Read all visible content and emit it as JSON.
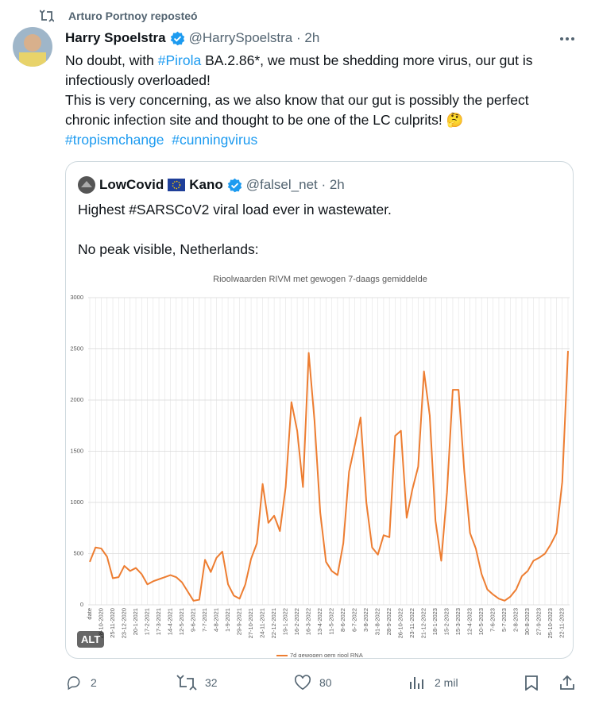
{
  "repost": {
    "text": "Arturo Portnoy reposteó"
  },
  "tweet": {
    "name": "Harry Spoelstra",
    "meta": "@HarrySpoelstra · 2h",
    "paragraphs": [
      [
        {
          "text": "No doubt, with "
        },
        {
          "text": "#Pirola",
          "hashtag": true
        },
        {
          "text": " BA.2.86*, we must be shedding more virus, our gut is infectiously overloaded!"
        }
      ],
      [
        {
          "text": "This is very concerning, as we also know that our gut is possibly the perfect chronic infection site and thought to be one of the LC culprits! 🤔"
        }
      ],
      [
        {
          "text": "#tropismchange",
          "hashtag": true
        },
        {
          "text": "  "
        },
        {
          "text": "#cunningvirus",
          "hashtag": true
        }
      ]
    ]
  },
  "quote": {
    "name": "LowCovid",
    "name2": "Kano",
    "meta": "@falsel_net · 2h",
    "lines": [
      "Highest #SARSCoV2 viral load ever in wastewater.",
      "No peak visible, Netherlands:"
    ],
    "alt": "ALT"
  },
  "chart_data": {
    "type": "line",
    "title": "Rioolwaarden RIVM met gewogen 7-daags gemiddelde",
    "categories": [
      "date",
      null,
      "28-10-2020",
      null,
      "25-11-2020",
      null,
      "23-12-2020",
      null,
      "20-1-2021",
      null,
      "17-2-2021",
      null,
      "17-3-2021",
      null,
      "14-4-2021",
      null,
      "12-5-2021",
      null,
      "9-6-2021",
      null,
      "7-7-2021",
      null,
      "4-8-2021",
      null,
      "1-9-2021",
      null,
      "29-9-2021",
      null,
      "27-10-2021",
      null,
      "24-11-2021",
      null,
      "22-12-2021",
      null,
      "19-1-2022",
      null,
      "16-2-2022",
      null,
      "16-3-2022",
      null,
      "13-4-2022",
      null,
      "11-5-2022",
      null,
      "8-6-2022",
      null,
      "6-7-2022",
      null,
      "3-8-2022",
      null,
      "31-8-2022",
      null,
      "28-9-2022",
      null,
      "26-10-2022",
      null,
      "23-11-2022",
      null,
      "21-12-2022",
      null,
      "18-1-2023",
      null,
      "15-2-2023",
      null,
      "15-3-2023",
      null,
      "12-4-2023",
      null,
      "10-5-2023",
      null,
      "7-6-2023",
      null,
      "5-7-2023",
      null,
      "2-8-2023",
      null,
      "30-8-2023",
      null,
      "27-9-2023",
      null,
      "25-10-2023",
      null,
      "22-11-2023",
      null
    ],
    "series": [
      {
        "name": "7d gewogen gem riool RNA",
        "color": "#ed7d31",
        "values": [
          420,
          560,
          550,
          470,
          260,
          270,
          380,
          330,
          360,
          300,
          200,
          230,
          250,
          270,
          290,
          270,
          220,
          130,
          40,
          50,
          440,
          320,
          460,
          520,
          200,
          90,
          60,
          200,
          450,
          600,
          1180,
          800,
          870,
          720,
          1150,
          1980,
          1700,
          1150,
          2460,
          1800,
          900,
          420,
          330,
          290,
          600,
          1300,
          1560,
          1830,
          1000,
          560,
          490,
          680,
          660,
          1650,
          1700,
          850,
          1130,
          1350,
          2280,
          1850,
          820,
          430,
          1100,
          2100,
          2100,
          1300,
          700,
          550,
          300,
          150,
          100,
          60,
          40,
          80,
          150,
          280,
          330,
          430,
          460,
          500,
          590,
          700,
          1200,
          2480
        ]
      }
    ],
    "ylim": [
      0,
      3000
    ],
    "yticks": [
      0,
      500,
      1000,
      1500,
      2000,
      2500,
      3000
    ],
    "grid": true
  },
  "actions": {
    "replies": 2,
    "reposts": 32,
    "likes": 80,
    "views": "2 mil"
  }
}
